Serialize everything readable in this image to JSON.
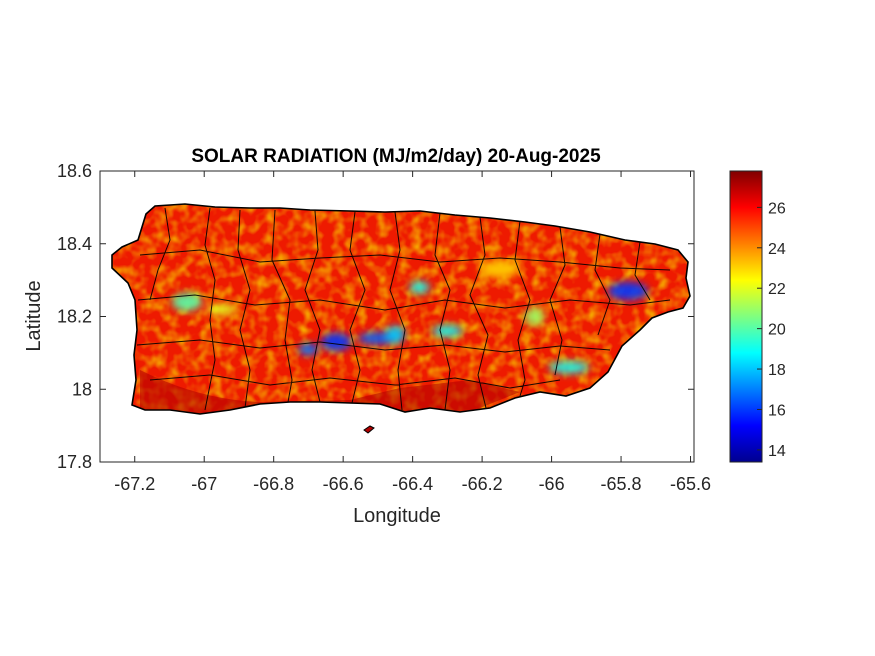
{
  "chart_data": {
    "type": "heatmap",
    "title": "SOLAR RADIATION (MJ/m2/day) 20-Aug-2025",
    "xlabel": "Longitude",
    "ylabel": "Latitude",
    "xlim": [
      -67.3,
      -65.59
    ],
    "ylim": [
      17.8,
      18.6
    ],
    "x_ticks": [
      -67.2,
      -67,
      -66.8,
      -66.6,
      -66.4,
      -66.2,
      -66,
      -65.8,
      -65.6
    ],
    "x_tick_labels": [
      "-67.2",
      "-67",
      "-66.8",
      "-66.6",
      "-66.4",
      "-66.2",
      "-66",
      "-65.8",
      "-65.6"
    ],
    "y_ticks": [
      17.8,
      18,
      18.2,
      18.4,
      18.6
    ],
    "y_tick_labels": [
      "17.8",
      "18",
      "18.2",
      "18.4",
      "18.6"
    ],
    "colorbar": {
      "colormap": "jet",
      "range": [
        13.4,
        27.8
      ],
      "ticks": [
        14,
        16,
        18,
        20,
        22,
        24,
        26
      ],
      "tick_labels": [
        "14",
        "16",
        "18",
        "20",
        "22",
        "24",
        "26"
      ]
    },
    "field_features": [
      {
        "lon": -66.7,
        "lat": 18.11,
        "value": 16.5
      },
      {
        "lon": -66.62,
        "lat": 18.13,
        "value": 16
      },
      {
        "lon": -66.5,
        "lat": 18.14,
        "value": 16.5
      },
      {
        "lon": -66.45,
        "lat": 18.15,
        "value": 18
      },
      {
        "lon": -66.3,
        "lat": 18.16,
        "value": 19
      },
      {
        "lon": -65.78,
        "lat": 18.27,
        "value": 16
      },
      {
        "lon": -66.38,
        "lat": 18.28,
        "value": 19
      },
      {
        "lon": -67.05,
        "lat": 18.24,
        "value": 20
      },
      {
        "lon": -65.95,
        "lat": 18.06,
        "value": 19
      },
      {
        "lon": -66.05,
        "lat": 18.2,
        "value": 21
      },
      {
        "lon": -66.95,
        "lat": 18.22,
        "value": 22
      },
      {
        "lon": -66.15,
        "lat": 18.33,
        "value": 23
      }
    ],
    "background_value": 25.5
  }
}
